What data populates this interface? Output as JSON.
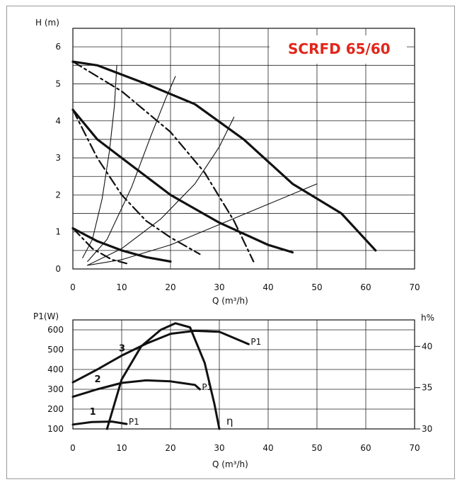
{
  "chart_data": [
    {
      "type": "line",
      "title": "SCRFD 65/60",
      "xlabel": "Q (m³/h)",
      "ylabel": "H (m)",
      "xlim": [
        0,
        70
      ],
      "ylim": [
        0,
        6.5
      ],
      "x_ticks": [
        "0",
        "10",
        "20",
        "30",
        "40",
        "50",
        "60",
        "70"
      ],
      "y_ticks": [
        "0",
        "1",
        "2",
        "3",
        "4",
        "5",
        "6"
      ],
      "grid": true,
      "series": [
        {
          "points": [
            [
              0,
              5.6
            ],
            [
              5,
              5.5
            ],
            [
              10,
              5.25
            ],
            [
              15,
              5.0
            ],
            [
              25,
              4.45
            ],
            [
              35,
              3.5
            ],
            [
              45,
              2.3
            ],
            [
              55,
              1.5
            ],
            [
              62,
              0.5
            ]
          ]
        },
        {
          "points": [
            [
              0,
              4.3
            ],
            [
              5,
              3.5
            ],
            [
              10,
              3.0
            ],
            [
              20,
              2.0
            ],
            [
              30,
              1.25
            ],
            [
              40,
              0.65
            ],
            [
              45,
              0.45
            ]
          ]
        },
        {
          "points": [
            [
              0,
              1.1
            ],
            [
              5,
              0.75
            ],
            [
              10,
              0.5
            ],
            [
              15,
              0.32
            ],
            [
              20,
              0.2
            ]
          ]
        },
        {
          "points": [
            [
              0,
              5.6
            ],
            [
              10,
              4.8
            ],
            [
              20,
              3.7
            ],
            [
              27,
              2.6
            ],
            [
              33,
              1.3
            ],
            [
              37,
              0.2
            ]
          ]
        },
        {
          "points": [
            [
              0,
              4.3
            ],
            [
              5,
              3.0
            ],
            [
              10,
              2.0
            ],
            [
              15,
              1.3
            ],
            [
              20,
              0.85
            ],
            [
              26,
              0.4
            ]
          ]
        },
        {
          "points": [
            [
              0,
              1.1
            ],
            [
              4,
              0.55
            ],
            [
              8,
              0.25
            ],
            [
              11,
              0.15
            ]
          ]
        },
        {
          "points": [
            [
              2,
              0.3
            ],
            [
              4,
              0.8
            ],
            [
              6,
              1.9
            ],
            [
              7.5,
              3.2
            ],
            [
              8.5,
              4.4
            ],
            [
              9,
              5.5
            ]
          ]
        },
        {
          "points": [
            [
              3,
              0.2
            ],
            [
              7,
              0.8
            ],
            [
              12,
              2.2
            ],
            [
              16,
              3.6
            ],
            [
              19,
              4.6
            ],
            [
              21,
              5.2
            ]
          ]
        },
        {
          "points": [
            [
              3,
              0.1
            ],
            [
              10,
              0.55
            ],
            [
              18,
              1.35
            ],
            [
              25,
              2.3
            ],
            [
              30,
              3.3
            ],
            [
              33,
              4.1
            ]
          ]
        },
        {
          "points": [
            [
              3,
              0.1
            ],
            [
              10,
              0.25
            ],
            [
              20,
              0.65
            ],
            [
              30,
              1.2
            ],
            [
              40,
              1.75
            ],
            [
              50,
              2.3
            ]
          ]
        }
      ]
    },
    {
      "type": "line",
      "xlabel": "Q (m³/h)",
      "ylabel": "P1(W)",
      "y2label": "h%",
      "xlim": [
        0,
        70
      ],
      "ylim": [
        100,
        650
      ],
      "y2lim": [
        30,
        46
      ],
      "x_ticks": [
        "0",
        "10",
        "20",
        "30",
        "40",
        "50",
        "60",
        "70"
      ],
      "y_ticks": [
        "100",
        "200",
        "300",
        "400",
        "500",
        "600"
      ],
      "y2_ticks": [
        "30",
        "35",
        "40"
      ],
      "grid": true,
      "series": [
        {
          "name": "3",
          "end_label": "P1",
          "axis": "left",
          "points": [
            [
              0,
              335
            ],
            [
              5,
              400
            ],
            [
              10,
              470
            ],
            [
              15,
              530
            ],
            [
              20,
              580
            ],
            [
              25,
              595
            ],
            [
              30,
              590
            ],
            [
              36,
              528
            ]
          ]
        },
        {
          "name": "2",
          "end_label": "P1",
          "axis": "left",
          "points": [
            [
              0,
              262
            ],
            [
              5,
              300
            ],
            [
              10,
              332
            ],
            [
              15,
              345
            ],
            [
              20,
              340
            ],
            [
              25,
              322
            ],
            [
              26,
              300
            ]
          ]
        },
        {
          "name": "1",
          "end_label": "P1",
          "axis": "left",
          "points": [
            [
              0,
              122
            ],
            [
              4,
              135
            ],
            [
              8,
              137
            ],
            [
              11,
              125
            ]
          ]
        },
        {
          "name": "η",
          "end_label": "η",
          "axis": "right",
          "points": [
            [
              7,
              30
            ],
            [
              10,
              36
            ],
            [
              14,
              40
            ],
            [
              18,
              42
            ],
            [
              21,
              42.8
            ],
            [
              24,
              42.3
            ],
            [
              27,
              38
            ],
            [
              29,
              33
            ],
            [
              30,
              30
            ]
          ]
        }
      ]
    }
  ]
}
